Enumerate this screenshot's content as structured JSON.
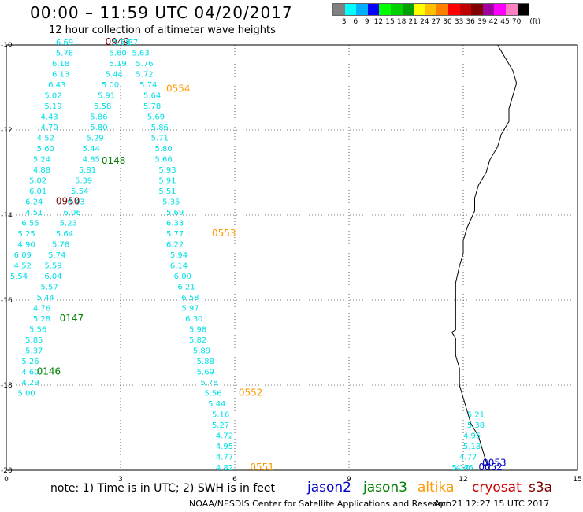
{
  "header": {
    "title": "00:00 – 11:59 UTC 04/20/2017",
    "subtitle": "12 hour collection of altimeter wave heights"
  },
  "scale": {
    "unit": "(ft)",
    "colors": [
      "#808080",
      "#00ffff",
      "#00b0ff",
      "#0000ff",
      "#00ff00",
      "#00d000",
      "#00a000",
      "#ffff00",
      "#ffc000",
      "#ff8000",
      "#ff0000",
      "#c00000",
      "#800000",
      "#a000a0",
      "#ff00ff",
      "#ff80c0",
      "#000000"
    ],
    "labels": [
      "3",
      "6",
      "9",
      "12",
      "15",
      "18",
      "21",
      "24",
      "27",
      "30",
      "33",
      "36",
      "39",
      "42",
      "45",
      "70"
    ]
  },
  "axes": {
    "x_ticks": [
      "0",
      "3",
      "6",
      "9",
      "12",
      "15"
    ],
    "y_ticks": [
      "-10",
      "-12",
      "-14",
      "-16",
      "-18",
      "-20"
    ]
  },
  "colors": {
    "wave": "#00e0e8",
    "jason2": "#0000cc",
    "jason3": "#008000",
    "altika": "#ff9900",
    "cryosat": "#cc0000",
    "s3a": "#800000"
  },
  "tracks": [
    {
      "name": "track-0949",
      "time": "0949",
      "sat": "s3a",
      "lon": 2.6,
      "lat": -10.0,
      "labels": [
        {
          "lon": 1.3,
          "lat": -10.0,
          "v": "6.69"
        },
        {
          "lon": 1.3,
          "lat": -10.25,
          "v": "5.78"
        },
        {
          "lon": 1.2,
          "lat": -10.5,
          "v": "6.18"
        },
        {
          "lon": 1.2,
          "lat": -10.75,
          "v": "6.13"
        },
        {
          "lon": 1.1,
          "lat": -11.0,
          "v": "6.43"
        },
        {
          "lon": 1.0,
          "lat": -11.25,
          "v": "5.02"
        },
        {
          "lon": 1.0,
          "lat": -11.5,
          "v": "5.19"
        },
        {
          "lon": 0.9,
          "lat": -11.75,
          "v": "4.43"
        },
        {
          "lon": 0.9,
          "lat": -12.0,
          "v": "4.70"
        },
        {
          "lon": 0.8,
          "lat": -12.25,
          "v": "4.52"
        },
        {
          "lon": 0.8,
          "lat": -12.5,
          "v": "5.60"
        },
        {
          "lon": 0.7,
          "lat": -12.75,
          "v": "5.24"
        },
        {
          "lon": 0.7,
          "lat": -13.0,
          "v": "4.88"
        },
        {
          "lon": 0.6,
          "lat": -13.25,
          "v": "5.02"
        },
        {
          "lon": 0.6,
          "lat": -13.5,
          "v": "6.01"
        },
        {
          "lon": 0.5,
          "lat": -13.75,
          "v": "6.24"
        },
        {
          "lon": 0.5,
          "lat": -14.0,
          "v": "4.51"
        },
        {
          "lon": 0.4,
          "lat": -14.25,
          "v": "6.55"
        },
        {
          "lon": 0.3,
          "lat": -14.5,
          "v": "5.25"
        },
        {
          "lon": 0.3,
          "lat": -14.75,
          "v": "4.90"
        },
        {
          "lon": 0.2,
          "lat": -15.0,
          "v": "6.09"
        },
        {
          "lon": 0.2,
          "lat": -15.25,
          "v": "4.52"
        },
        {
          "lon": 0.1,
          "lat": -15.5,
          "v": "5.54"
        }
      ]
    },
    {
      "name": "track-0950",
      "time": "0950",
      "sat": "s3a",
      "lon": 1.3,
      "lat": -13.75,
      "labels": [
        {
          "lon": 2.8,
          "lat": -10.0,
          "v": "5.78"
        },
        {
          "lon": 2.7,
          "lat": -10.25,
          "v": "5.60"
        },
        {
          "lon": 2.7,
          "lat": -10.5,
          "v": "5.19"
        },
        {
          "lon": 2.6,
          "lat": -10.75,
          "v": "5.44"
        },
        {
          "lon": 2.5,
          "lat": -11.0,
          "v": "5.00"
        },
        {
          "lon": 2.4,
          "lat": -11.25,
          "v": "5.91"
        },
        {
          "lon": 2.3,
          "lat": -11.5,
          "v": "5.58"
        },
        {
          "lon": 2.2,
          "lat": -11.75,
          "v": "5.86"
        },
        {
          "lon": 2.2,
          "lat": -12.0,
          "v": "5.80"
        },
        {
          "lon": 2.1,
          "lat": -12.25,
          "v": "5.29"
        },
        {
          "lon": 2.0,
          "lat": -12.5,
          "v": "5.44"
        },
        {
          "lon": 2.0,
          "lat": -12.75,
          "v": "4.85"
        },
        {
          "lon": 1.9,
          "lat": -13.0,
          "v": "5.81"
        },
        {
          "lon": 1.8,
          "lat": -13.25,
          "v": "5.39"
        },
        {
          "lon": 1.7,
          "lat": -13.5,
          "v": "5.54"
        },
        {
          "lon": 1.6,
          "lat": -13.75,
          "v": "6.43"
        },
        {
          "lon": 1.5,
          "lat": -14.0,
          "v": "6.06"
        },
        {
          "lon": 1.4,
          "lat": -14.25,
          "v": "5.23"
        },
        {
          "lon": 1.3,
          "lat": -14.5,
          "v": "5.64"
        },
        {
          "lon": 1.2,
          "lat": -14.75,
          "v": "5.78"
        },
        {
          "lon": 1.1,
          "lat": -15.0,
          "v": "5.74"
        },
        {
          "lon": 1.0,
          "lat": -15.25,
          "v": "5.59"
        },
        {
          "lon": 1.0,
          "lat": -15.5,
          "v": "6.04"
        },
        {
          "lon": 0.9,
          "lat": -15.75,
          "v": "5.57"
        },
        {
          "lon": 0.8,
          "lat": -16.0,
          "v": "5.44"
        },
        {
          "lon": 0.7,
          "lat": -16.25,
          "v": "4.76"
        },
        {
          "lon": 0.7,
          "lat": -16.5,
          "v": "5.28"
        },
        {
          "lon": 0.6,
          "lat": -16.75,
          "v": "5.56"
        },
        {
          "lon": 0.5,
          "lat": -17.0,
          "v": "5.85"
        },
        {
          "lon": 0.5,
          "lat": -17.25,
          "v": "5.37"
        },
        {
          "lon": 0.4,
          "lat": -17.5,
          "v": "5.26"
        },
        {
          "lon": 0.4,
          "lat": -17.75,
          "v": "4.60"
        },
        {
          "lon": 0.4,
          "lat": -18.0,
          "v": "4.29"
        },
        {
          "lon": 0.3,
          "lat": -18.25,
          "v": "5.00"
        }
      ]
    },
    {
      "name": "track-0554",
      "time": "0554",
      "sat": "altika",
      "lon": 4.2,
      "lat": -11.1,
      "labels": [
        {
          "lon": 3.0,
          "lat": -10.0,
          "v": "5.37"
        },
        {
          "lon": 3.3,
          "lat": -10.25,
          "v": "5.63"
        },
        {
          "lon": 3.4,
          "lat": -10.5,
          "v": "5.76"
        },
        {
          "lon": 3.4,
          "lat": -10.75,
          "v": "5.72"
        },
        {
          "lon": 3.5,
          "lat": -11.0,
          "v": "5.74"
        },
        {
          "lon": 3.6,
          "lat": -11.25,
          "v": "5.64"
        },
        {
          "lon": 3.6,
          "lat": -11.5,
          "v": "5.78"
        },
        {
          "lon": 3.7,
          "lat": -11.75,
          "v": "5.69"
        },
        {
          "lon": 3.8,
          "lat": -12.0,
          "v": "5.86"
        },
        {
          "lon": 3.8,
          "lat": -12.25,
          "v": "5.71"
        },
        {
          "lon": 3.9,
          "lat": -12.5,
          "v": "5.80"
        },
        {
          "lon": 3.9,
          "lat": -12.75,
          "v": "5.66"
        },
        {
          "lon": 4.0,
          "lat": -13.0,
          "v": "5.93"
        },
        {
          "lon": 4.0,
          "lat": -13.25,
          "v": "5.91"
        }
      ]
    },
    {
      "name": "track-0553",
      "time": "0553",
      "sat": "altika",
      "lon": 5.4,
      "lat": -14.5,
      "labels": [
        {
          "lon": 4.0,
          "lat": -13.5,
          "v": "5.51"
        },
        {
          "lon": 4.1,
          "lat": -13.75,
          "v": "5.35"
        },
        {
          "lon": 4.2,
          "lat": -14.0,
          "v": "5.69"
        },
        {
          "lon": 4.2,
          "lat": -14.25,
          "v": "6.33"
        },
        {
          "lon": 4.2,
          "lat": -14.5,
          "v": "5.77"
        },
        {
          "lon": 4.2,
          "lat": -14.75,
          "v": "6.22"
        },
        {
          "lon": 4.3,
          "lat": -15.0,
          "v": "5.94"
        },
        {
          "lon": 4.3,
          "lat": -15.25,
          "v": "6.14"
        },
        {
          "lon": 4.4,
          "lat": -15.5,
          "v": "6.00"
        },
        {
          "lon": 4.5,
          "lat": -15.75,
          "v": "6.21"
        },
        {
          "lon": 4.6,
          "lat": -16.0,
          "v": "6.58"
        },
        {
          "lon": 4.6,
          "lat": -16.25,
          "v": "5.97"
        },
        {
          "lon": 4.7,
          "lat": -16.5,
          "v": "6.30"
        },
        {
          "lon": 4.8,
          "lat": -16.75,
          "v": "5.98"
        },
        {
          "lon": 4.8,
          "lat": -17.0,
          "v": "5.82"
        }
      ]
    },
    {
      "name": "track-0552",
      "time": "0552",
      "sat": "altika",
      "lon": 6.1,
      "lat": -18.25,
      "labels": [
        {
          "lon": 4.9,
          "lat": -17.25,
          "v": "5.89"
        },
        {
          "lon": 5.0,
          "lat": -17.5,
          "v": "5.88"
        },
        {
          "lon": 5.0,
          "lat": -17.75,
          "v": "5.69"
        },
        {
          "lon": 5.1,
          "lat": -18.0,
          "v": "5.78"
        },
        {
          "lon": 5.2,
          "lat": -18.25,
          "v": "5.56"
        },
        {
          "lon": 5.3,
          "lat": -18.5,
          "v": "5.44"
        },
        {
          "lon": 5.4,
          "lat": -18.75,
          "v": "5.16"
        },
        {
          "lon": 5.4,
          "lat": -19.0,
          "v": "5.27"
        },
        {
          "lon": 5.5,
          "lat": -19.25,
          "v": "4.72"
        },
        {
          "lon": 5.5,
          "lat": -19.5,
          "v": "4.95"
        },
        {
          "lon": 5.5,
          "lat": -19.75,
          "v": "4.77"
        },
        {
          "lon": 5.5,
          "lat": -20.0,
          "v": "4.82"
        }
      ]
    },
    {
      "name": "track-0551",
      "time": "0551",
      "sat": "altika",
      "lon": 6.4,
      "lat": -20.0,
      "labels": []
    },
    {
      "name": "track-0148",
      "time": "0148",
      "sat": "jason3",
      "lon": 2.5,
      "lat": -12.8,
      "labels": []
    },
    {
      "name": "track-0147",
      "time": "0147",
      "sat": "jason3",
      "lon": 1.4,
      "lat": -16.5,
      "labels": []
    },
    {
      "name": "track-0146",
      "time": "0146",
      "sat": "jason3",
      "lon": 0.8,
      "lat": -17.75,
      "labels": []
    },
    {
      "name": "track-0053",
      "time": "0053",
      "sat": "jason2",
      "lon": 12.5,
      "lat": -19.9,
      "labels": [
        {
          "lon": 12.1,
          "lat": -18.75,
          "v": "5.21"
        },
        {
          "lon": 12.1,
          "lat": -19.0,
          "v": "5.38"
        },
        {
          "lon": 12.0,
          "lat": -19.25,
          "v": "4.95"
        },
        {
          "lon": 12.0,
          "lat": -19.5,
          "v": "5.18"
        },
        {
          "lon": 11.9,
          "lat": -19.75,
          "v": "4.77"
        },
        {
          "lon": 11.8,
          "lat": -20.0,
          "v": "4.46"
        }
      ]
    },
    {
      "name": "track-0052",
      "time": "0052",
      "sat": "jason2",
      "lon": 12.4,
      "lat": -20.0,
      "labels": [
        {
          "lon": 11.7,
          "lat": -20.0,
          "v": "5.17"
        }
      ]
    }
  ],
  "footer": {
    "note": "note:  1) Time is in UTC;  2) SWH is in feet",
    "sats": [
      {
        "key": "jason2",
        "label": "jason2"
      },
      {
        "key": "jason3",
        "label": "jason3"
      },
      {
        "key": "altika",
        "label": "altika"
      },
      {
        "key": "cryosat",
        "label": "cryosat"
      },
      {
        "key": "s3a",
        "label": "s3a"
      }
    ],
    "credit": "NOAA/NESDIS Center for Satellite Applications and Research",
    "stamp": "Apr 21  12:27:15 UTC 2017"
  }
}
